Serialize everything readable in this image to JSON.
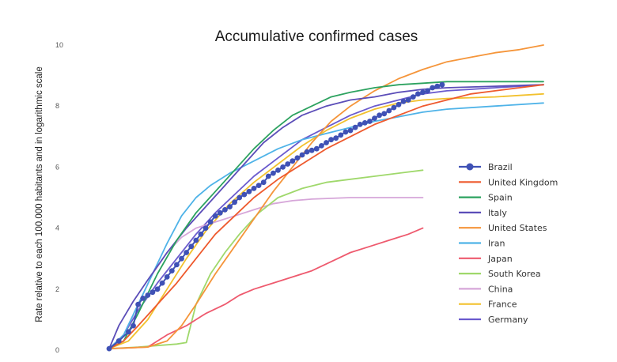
{
  "chart_data": {
    "type": "line",
    "title": "Accumulative confirmed cases",
    "ylabel": "Rate relative to each 100.000 habitants and in logarithmic scale",
    "xlabel": "",
    "ylim": [
      0,
      10
    ],
    "xlim": [
      0,
      100
    ],
    "yticks": [
      "0",
      "2",
      "4",
      "6",
      "8",
      "10"
    ],
    "legend_position": "right",
    "series": [
      {
        "name": "Brazil",
        "color": "#3f51b5",
        "marker": "circle",
        "points": [
          [
            0,
            0.05
          ],
          [
            2,
            0.3
          ],
          [
            4,
            0.6
          ],
          [
            5,
            0.8
          ],
          [
            6,
            1.5
          ],
          [
            7,
            1.7
          ],
          [
            8,
            1.8
          ],
          [
            9,
            1.9
          ],
          [
            10,
            2.0
          ],
          [
            11,
            2.2
          ],
          [
            12,
            2.4
          ],
          [
            13,
            2.6
          ],
          [
            14,
            2.8
          ],
          [
            15,
            3.0
          ],
          [
            16,
            3.2
          ],
          [
            17,
            3.4
          ],
          [
            18,
            3.6
          ],
          [
            19,
            3.8
          ],
          [
            20,
            4.0
          ],
          [
            21,
            4.2
          ],
          [
            22,
            4.4
          ],
          [
            23,
            4.5
          ],
          [
            24,
            4.6
          ],
          [
            25,
            4.7
          ],
          [
            26,
            4.85
          ],
          [
            27,
            5.0
          ],
          [
            28,
            5.1
          ],
          [
            29,
            5.2
          ],
          [
            30,
            5.3
          ],
          [
            31,
            5.4
          ],
          [
            32,
            5.5
          ],
          [
            33,
            5.7
          ],
          [
            34,
            5.8
          ],
          [
            35,
            5.9
          ],
          [
            36,
            6.0
          ],
          [
            37,
            6.1
          ],
          [
            38,
            6.2
          ],
          [
            39,
            6.3
          ],
          [
            40,
            6.4
          ],
          [
            41,
            6.5
          ],
          [
            42,
            6.55
          ],
          [
            43,
            6.6
          ],
          [
            44,
            6.7
          ],
          [
            45,
            6.8
          ],
          [
            46,
            6.9
          ],
          [
            47,
            6.95
          ],
          [
            48,
            7.05
          ],
          [
            49,
            7.15
          ],
          [
            50,
            7.2
          ],
          [
            51,
            7.3
          ],
          [
            52,
            7.4
          ],
          [
            53,
            7.45
          ],
          [
            54,
            7.5
          ],
          [
            55,
            7.6
          ],
          [
            56,
            7.7
          ],
          [
            57,
            7.75
          ],
          [
            58,
            7.85
          ],
          [
            59,
            7.95
          ],
          [
            60,
            8.05
          ],
          [
            61,
            8.15
          ],
          [
            62,
            8.2
          ],
          [
            63,
            8.3
          ],
          [
            64,
            8.4
          ],
          [
            65,
            8.45
          ],
          [
            66,
            8.5
          ],
          [
            67,
            8.6
          ],
          [
            68,
            8.65
          ],
          [
            69,
            8.7
          ]
        ]
      },
      {
        "name": "United Kingdom",
        "color": "#ee5a2e",
        "marker": "none",
        "points": [
          [
            0,
            0.05
          ],
          [
            3,
            0.3
          ],
          [
            6,
            0.8
          ],
          [
            10,
            1.5
          ],
          [
            14,
            2.2
          ],
          [
            18,
            3.0
          ],
          [
            22,
            3.8
          ],
          [
            26,
            4.4
          ],
          [
            30,
            5.0
          ],
          [
            35,
            5.6
          ],
          [
            40,
            6.1
          ],
          [
            45,
            6.6
          ],
          [
            50,
            7.0
          ],
          [
            55,
            7.4
          ],
          [
            60,
            7.7
          ],
          [
            65,
            8.0
          ],
          [
            70,
            8.2
          ],
          [
            75,
            8.4
          ],
          [
            80,
            8.5
          ],
          [
            85,
            8.6
          ],
          [
            90,
            8.7
          ]
        ]
      },
      {
        "name": "Spain",
        "color": "#2ca25f",
        "marker": "none",
        "points": [
          [
            0,
            0.05
          ],
          [
            3,
            0.3
          ],
          [
            6,
            1.2
          ],
          [
            10,
            2.5
          ],
          [
            14,
            3.6
          ],
          [
            18,
            4.5
          ],
          [
            22,
            5.2
          ],
          [
            26,
            5.9
          ],
          [
            30,
            6.6
          ],
          [
            34,
            7.2
          ],
          [
            38,
            7.7
          ],
          [
            42,
            8.0
          ],
          [
            46,
            8.3
          ],
          [
            50,
            8.45
          ],
          [
            55,
            8.6
          ],
          [
            60,
            8.7
          ],
          [
            65,
            8.75
          ],
          [
            70,
            8.8
          ],
          [
            80,
            8.8
          ],
          [
            90,
            8.8
          ]
        ]
      },
      {
        "name": "Italy",
        "color": "#5b4db8",
        "marker": "none",
        "points": [
          [
            0,
            0.05
          ],
          [
            2,
            0.8
          ],
          [
            5,
            1.6
          ],
          [
            8,
            2.3
          ],
          [
            12,
            3.2
          ],
          [
            16,
            4.0
          ],
          [
            20,
            4.7
          ],
          [
            24,
            5.4
          ],
          [
            28,
            6.1
          ],
          [
            32,
            6.8
          ],
          [
            36,
            7.3
          ],
          [
            40,
            7.7
          ],
          [
            45,
            8.0
          ],
          [
            50,
            8.2
          ],
          [
            55,
            8.3
          ],
          [
            60,
            8.45
          ],
          [
            65,
            8.55
          ],
          [
            70,
            8.6
          ],
          [
            80,
            8.65
          ],
          [
            90,
            8.7
          ]
        ]
      },
      {
        "name": "United States",
        "color": "#f5953a",
        "marker": "none",
        "points": [
          [
            0,
            0.05
          ],
          [
            8,
            0.1
          ],
          [
            12,
            0.3
          ],
          [
            15,
            0.8
          ],
          [
            18,
            1.5
          ],
          [
            22,
            2.5
          ],
          [
            26,
            3.4
          ],
          [
            30,
            4.3
          ],
          [
            34,
            5.2
          ],
          [
            38,
            6.0
          ],
          [
            42,
            6.8
          ],
          [
            46,
            7.5
          ],
          [
            50,
            8.0
          ],
          [
            55,
            8.5
          ],
          [
            60,
            8.9
          ],
          [
            65,
            9.2
          ],
          [
            70,
            9.45
          ],
          [
            75,
            9.6
          ],
          [
            80,
            9.75
          ],
          [
            85,
            9.85
          ],
          [
            90,
            10.0
          ]
        ]
      },
      {
        "name": "Iran",
        "color": "#4fb3e8",
        "marker": "none",
        "points": [
          [
            0,
            0.05
          ],
          [
            3,
            0.5
          ],
          [
            6,
            1.5
          ],
          [
            9,
            2.5
          ],
          [
            12,
            3.5
          ],
          [
            15,
            4.4
          ],
          [
            18,
            5.0
          ],
          [
            21,
            5.4
          ],
          [
            25,
            5.8
          ],
          [
            30,
            6.2
          ],
          [
            35,
            6.6
          ],
          [
            40,
            6.9
          ],
          [
            45,
            7.1
          ],
          [
            50,
            7.3
          ],
          [
            55,
            7.5
          ],
          [
            60,
            7.65
          ],
          [
            65,
            7.8
          ],
          [
            70,
            7.9
          ],
          [
            80,
            8.0
          ],
          [
            90,
            8.1
          ]
        ]
      },
      {
        "name": "Japan",
        "color": "#ee5a6e",
        "marker": "none",
        "points": [
          [
            0,
            0.05
          ],
          [
            8,
            0.1
          ],
          [
            12,
            0.5
          ],
          [
            16,
            0.8
          ],
          [
            20,
            1.2
          ],
          [
            24,
            1.5
          ],
          [
            27,
            1.8
          ],
          [
            30,
            2.0
          ],
          [
            34,
            2.2
          ],
          [
            38,
            2.4
          ],
          [
            42,
            2.6
          ],
          [
            46,
            2.9
          ],
          [
            50,
            3.2
          ],
          [
            54,
            3.4
          ],
          [
            58,
            3.6
          ],
          [
            62,
            3.8
          ],
          [
            65,
            4.0
          ]
        ]
      },
      {
        "name": "South Korea",
        "color": "#9fd86b",
        "marker": "none",
        "points": [
          [
            0,
            0.05
          ],
          [
            6,
            0.1
          ],
          [
            10,
            0.15
          ],
          [
            14,
            0.2
          ],
          [
            16,
            0.25
          ],
          [
            18,
            1.5
          ],
          [
            21,
            2.5
          ],
          [
            24,
            3.2
          ],
          [
            27,
            3.8
          ],
          [
            31,
            4.5
          ],
          [
            35,
            5.0
          ],
          [
            40,
            5.3
          ],
          [
            45,
            5.5
          ],
          [
            50,
            5.6
          ],
          [
            55,
            5.7
          ],
          [
            60,
            5.8
          ],
          [
            65,
            5.9
          ]
        ]
      },
      {
        "name": "China",
        "color": "#d6a6d9",
        "marker": "none",
        "points": [
          [
            0,
            0.05
          ],
          [
            3,
            0.5
          ],
          [
            6,
            1.5
          ],
          [
            9,
            2.5
          ],
          [
            12,
            3.2
          ],
          [
            15,
            3.7
          ],
          [
            18,
            4.0
          ],
          [
            22,
            4.2
          ],
          [
            26,
            4.4
          ],
          [
            30,
            4.6
          ],
          [
            34,
            4.8
          ],
          [
            38,
            4.9
          ],
          [
            42,
            4.95
          ],
          [
            50,
            5.0
          ],
          [
            60,
            5.0
          ],
          [
            65,
            5.0
          ]
        ]
      },
      {
        "name": "France",
        "color": "#f2c12e",
        "marker": "none",
        "points": [
          [
            0,
            0.05
          ],
          [
            4,
            0.3
          ],
          [
            8,
            1.0
          ],
          [
            12,
            2.0
          ],
          [
            16,
            3.0
          ],
          [
            20,
            3.9
          ],
          [
            25,
            4.8
          ],
          [
            30,
            5.5
          ],
          [
            35,
            6.1
          ],
          [
            40,
            6.7
          ],
          [
            45,
            7.2
          ],
          [
            50,
            7.6
          ],
          [
            55,
            7.9
          ],
          [
            60,
            8.1
          ],
          [
            65,
            8.2
          ],
          [
            70,
            8.25
          ],
          [
            80,
            8.3
          ],
          [
            90,
            8.4
          ]
        ]
      },
      {
        "name": "Germany",
        "color": "#6a5acd",
        "marker": "none",
        "points": [
          [
            0,
            0.05
          ],
          [
            3,
            0.5
          ],
          [
            6,
            1.3
          ],
          [
            10,
            2.2
          ],
          [
            14,
            3.0
          ],
          [
            18,
            3.8
          ],
          [
            22,
            4.5
          ],
          [
            26,
            5.1
          ],
          [
            30,
            5.7
          ],
          [
            35,
            6.3
          ],
          [
            40,
            6.9
          ],
          [
            45,
            7.3
          ],
          [
            50,
            7.7
          ],
          [
            55,
            8.0
          ],
          [
            60,
            8.2
          ],
          [
            65,
            8.4
          ],
          [
            70,
            8.5
          ],
          [
            75,
            8.55
          ],
          [
            80,
            8.6
          ],
          [
            90,
            8.7
          ]
        ]
      }
    ]
  }
}
